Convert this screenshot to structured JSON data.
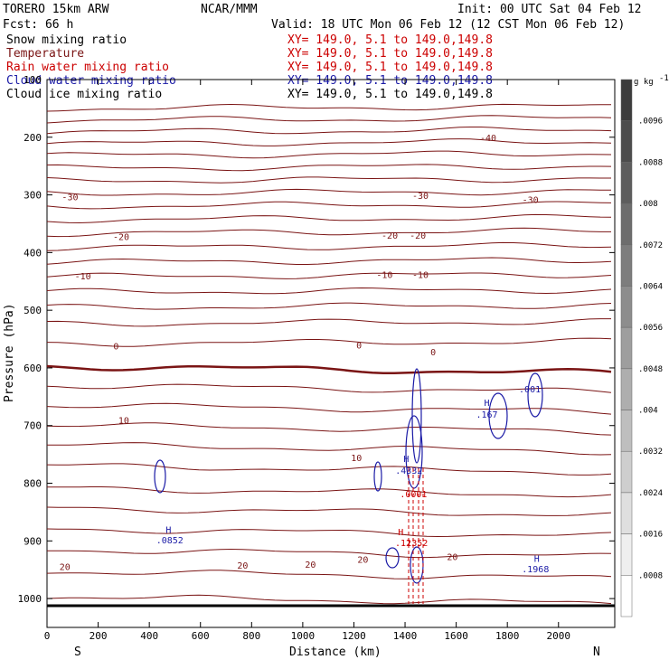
{
  "header": {
    "model": "TORERO  15km ARW",
    "center": "NCAR/MMM",
    "init": "Init: 00 UTC Sat 04 Feb 12",
    "fcst": "Fcst:   66 h",
    "valid": "Valid: 18 UTC Mon 06 Feb 12 (12 CST Mon 06 Feb 12)"
  },
  "fields": [
    {
      "name": "Snow mixing ratio",
      "color": "#000000",
      "xy": ""
    },
    {
      "name": "Temperature",
      "color": "#7a1414",
      "xy": "XY= 149.0,  5.1 to 149.0,149.8"
    },
    {
      "name": "Rain water mixing ratio",
      "color": "#cc0000",
      "xy": "XY= 149.0,  5.1 to 149.0,149.8"
    },
    {
      "name": "Cloud water mixing ratio",
      "color": "#1a1aa6",
      "xy": "XY= 149.0,  5.1 to 149.0,149.8"
    },
    {
      "name": "Cloud ice mixing ratio",
      "color": "#000000",
      "xy": "XY= 149.0,  5.1 to 149.0,149.8"
    }
  ],
  "chart_data": {
    "type": "contour",
    "xlabel": "Distance (km)",
    "ylabel": "Pressure (hPa)",
    "xlim": [
      0,
      2220
    ],
    "ylim": [
      1050,
      100
    ],
    "x_ticks": [
      0,
      200,
      400,
      600,
      800,
      1000,
      1200,
      1400,
      1600,
      1800,
      2000
    ],
    "y_ticks": [
      100,
      200,
      300,
      400,
      500,
      600,
      700,
      800,
      900,
      1000
    ],
    "x_end_labels": {
      "left": "S",
      "right": "N"
    },
    "temperature_labels": [
      {
        "text": "-40",
        "x": 1725,
        "p": 200
      },
      {
        "text": "-30",
        "x": 90,
        "p": 303
      },
      {
        "text": "-30",
        "x": 1460,
        "p": 301
      },
      {
        "text": "-30",
        "x": 1890,
        "p": 308
      },
      {
        "text": "-20",
        "x": 290,
        "p": 372
      },
      {
        "text": "-20",
        "x": 1340,
        "p": 370
      },
      {
        "text": "-20",
        "x": 1450,
        "p": 370
      },
      {
        "text": "-10",
        "x": 140,
        "p": 440
      },
      {
        "text": "-10",
        "x": 1320,
        "p": 438
      },
      {
        "text": "-10",
        "x": 1460,
        "p": 438
      },
      {
        "text": "0",
        "x": 270,
        "p": 562
      },
      {
        "text": "0",
        "x": 1220,
        "p": 560
      },
      {
        "text": "0",
        "x": 1510,
        "p": 572
      },
      {
        "text": "10",
        "x": 300,
        "p": 690
      },
      {
        "text": "10",
        "x": 1210,
        "p": 755
      },
      {
        "text": "20",
        "x": 70,
        "p": 944
      },
      {
        "text": "20",
        "x": 765,
        "p": 942
      },
      {
        "text": "20",
        "x": 1030,
        "p": 940
      },
      {
        "text": "20",
        "x": 1235,
        "p": 932
      },
      {
        "text": "20",
        "x": 1585,
        "p": 927
      }
    ],
    "cloud_water_labels": [
      {
        "text": "H",
        "x": 1720,
        "p": 660
      },
      {
        "text": ".167",
        "x": 1720,
        "p": 680
      },
      {
        "text": ".001",
        "x": 1888,
        "p": 636
      },
      {
        "text": "H",
        "x": 1405,
        "p": 757
      },
      {
        "text": ".4332",
        "x": 1415,
        "p": 777
      },
      {
        "text": "H",
        "x": 475,
        "p": 880
      },
      {
        "text": ".0852",
        "x": 480,
        "p": 898
      },
      {
        "text": "H",
        "x": 1915,
        "p": 930
      },
      {
        "text": ".1968",
        "x": 1910,
        "p": 948
      }
    ],
    "rain_labels": [
      {
        "text": ".0001",
        "x": 1433,
        "p": 818
      },
      {
        "text": "H",
        "x": 1383,
        "p": 884
      },
      {
        "text": ".12",
        "x": 1393,
        "p": 903
      },
      {
        "text": ".1352",
        "x": 1436,
        "p": 903
      }
    ],
    "colorbar": {
      "unit": "g kg",
      "unit_exp": "-1",
      "labels": [
        ".0096",
        ".0088",
        ".008",
        ".0072",
        ".0064",
        ".0056",
        ".0048",
        ".004",
        ".0032",
        ".0024",
        ".0016",
        ".0008"
      ]
    }
  }
}
